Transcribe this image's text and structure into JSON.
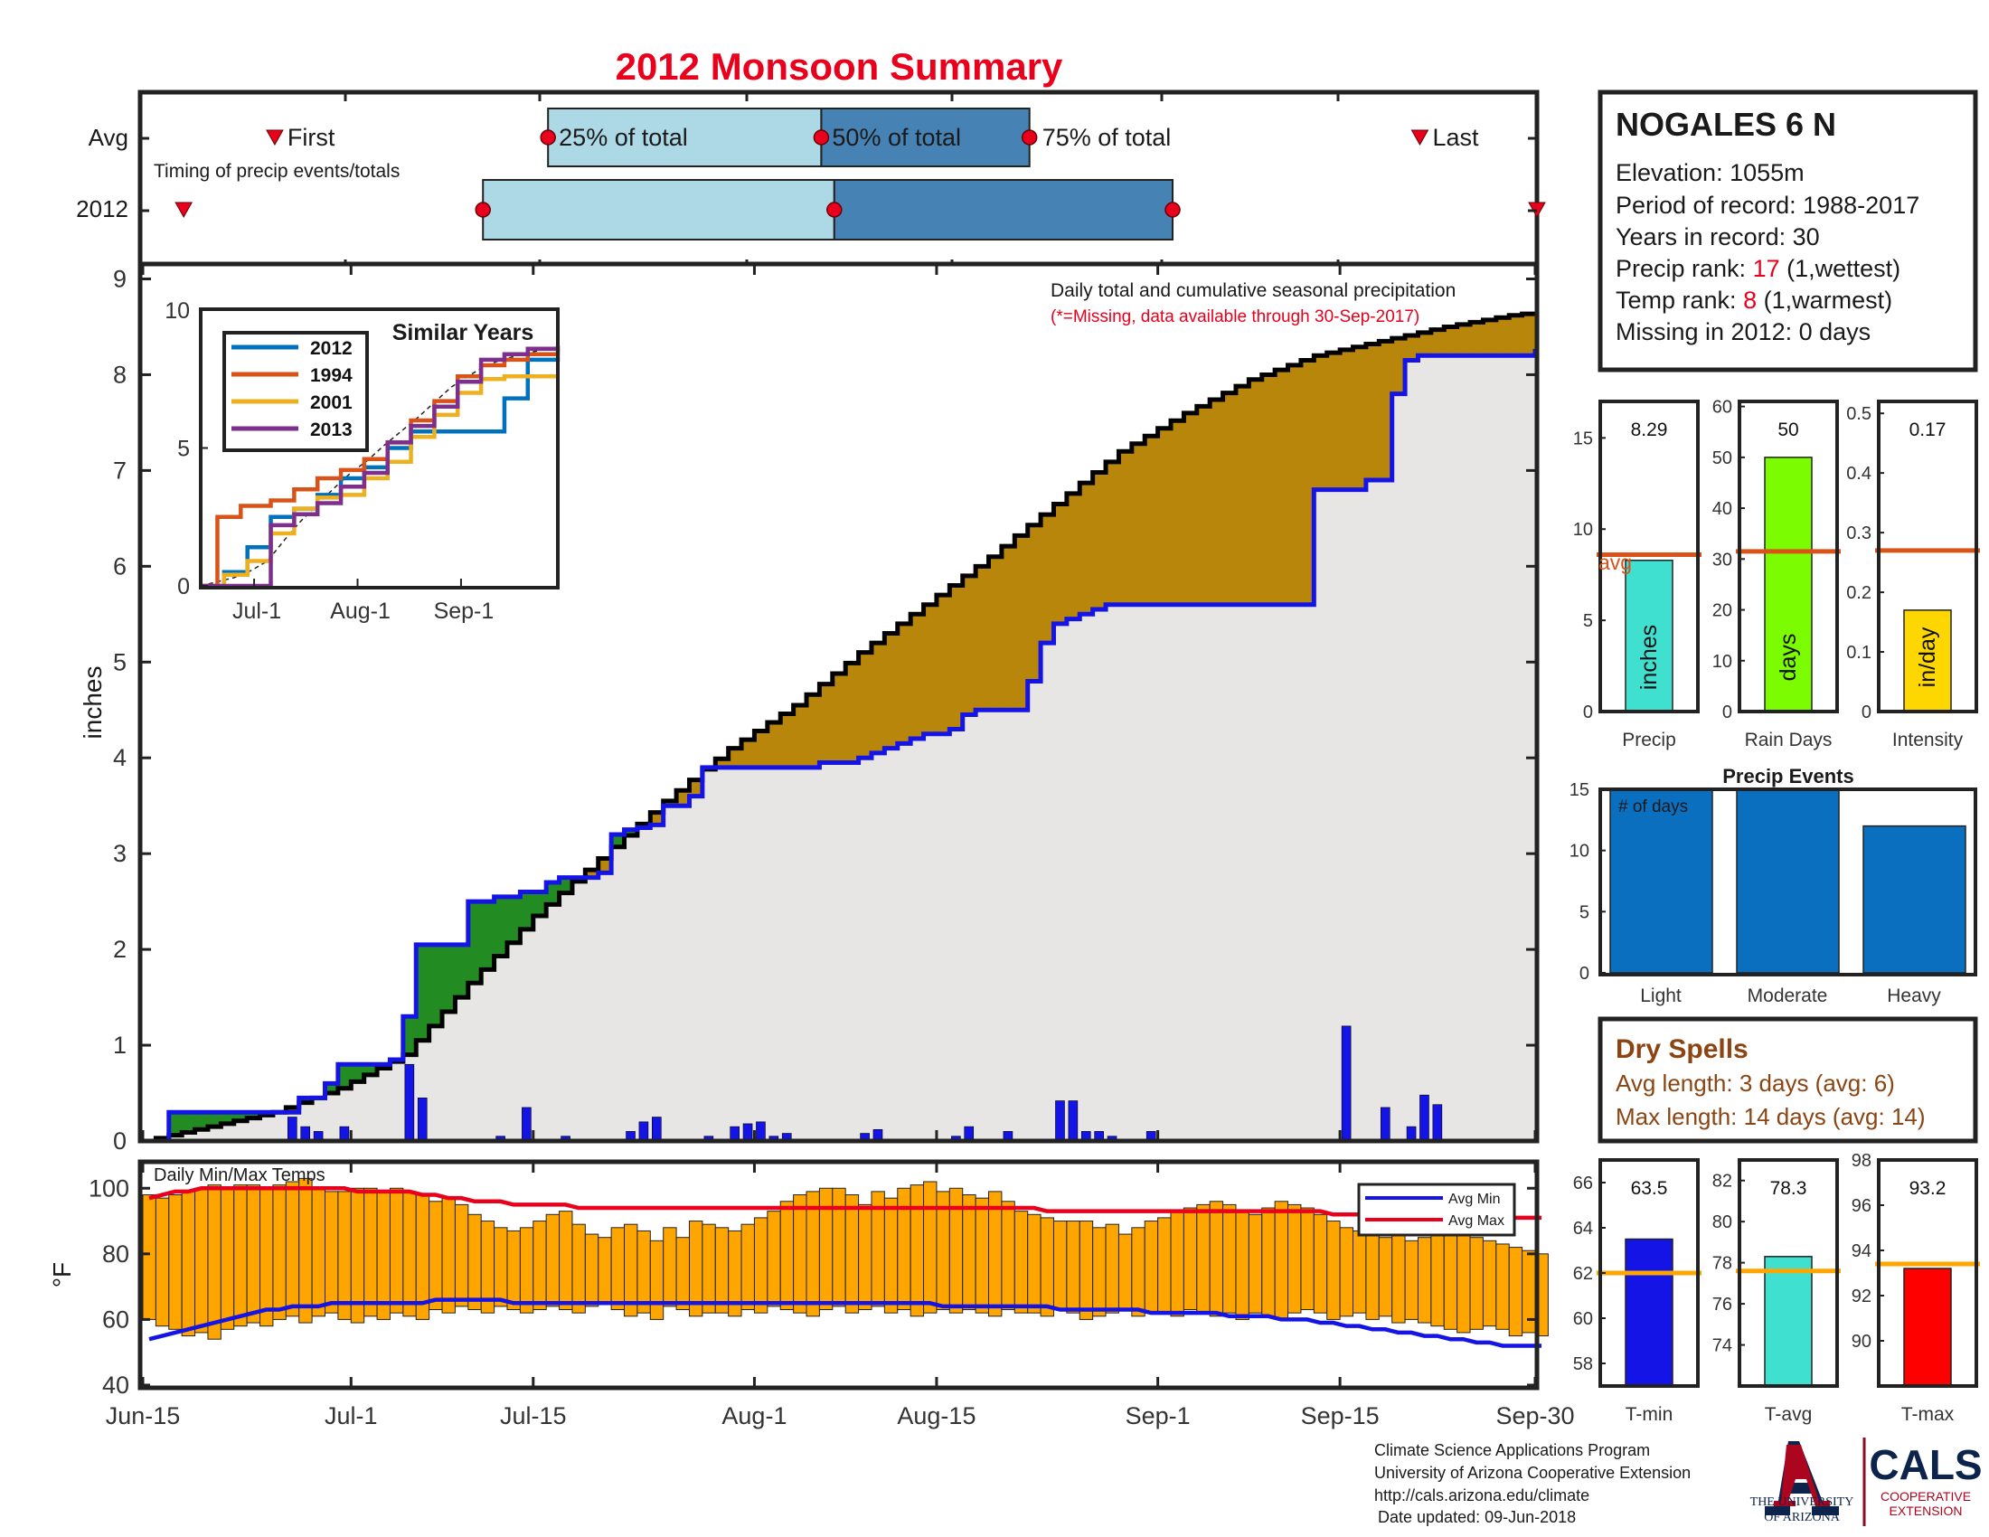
{
  "title": "2012 Monsoon Summary",
  "timing": {
    "rows": [
      "Avg",
      "2012"
    ],
    "note": "Timing of precip events/totals",
    "first_label": "First",
    "last_label": "Last",
    "q25_label": "25% of total",
    "q50_label": "50% of total",
    "q75_label": "75% of total"
  },
  "station": {
    "name": "NOGALES 6 N",
    "elevation_label": "Elevation: 1055m",
    "period_label": "Period of record: 1988-2017",
    "years_label": "Years in record: 30",
    "precip_rank_prefix": "Precip rank: ",
    "precip_rank": "17",
    "precip_rank_suffix": " (1,wettest)",
    "temp_rank_prefix": "Temp rank: ",
    "temp_rank": "8",
    "temp_rank_suffix": " (1,warmest)",
    "missing_label": "Missing in 2012: 0 days"
  },
  "main_chart": {
    "annotation_line1": "Daily total and cumulative seasonal precipitation",
    "annotation_line2": "(*=Missing, data available through 30-Sep-2017)",
    "ylabel": "inches",
    "yticks": [
      "0",
      "1",
      "2",
      "3",
      "4",
      "5",
      "6",
      "7",
      "8",
      "9"
    ],
    "xticks": [
      "Jun-15",
      "Jul-1",
      "Jul-15",
      "Aug-1",
      "Aug-15",
      "Sep-1",
      "Sep-15",
      "Sep-30"
    ]
  },
  "inset": {
    "title": "Similar Years",
    "legend": [
      "2012",
      "1994",
      "2001",
      "2013"
    ],
    "yticks": [
      "0",
      "5",
      "10"
    ],
    "xticks": [
      "Jul-1",
      "Aug-1",
      "Sep-1"
    ]
  },
  "temps": {
    "title": "Daily Min/Max Temps",
    "ylabel": "°F",
    "yticks": [
      "40",
      "60",
      "80",
      "100"
    ],
    "legend_min": "Avg Min",
    "legend_max": "Avg Max"
  },
  "precip_panel": {
    "value": "8.29",
    "label": "Precip",
    "unit": "inches",
    "avg_label": "avg",
    "yticks": [
      "0",
      "5",
      "10",
      "15"
    ]
  },
  "raindays_panel": {
    "value": "50",
    "label": "Rain Days",
    "unit": "days",
    "yticks": [
      "0",
      "10",
      "20",
      "30",
      "40",
      "50",
      "60"
    ]
  },
  "intensity_panel": {
    "value": "0.17",
    "label": "Intensity",
    "unit": "in/day",
    "yticks": [
      "0",
      "0.1",
      "0.2",
      "0.3",
      "0.4",
      "0.5"
    ]
  },
  "events_panel": {
    "title": "Precip Events",
    "note": "# of days",
    "yticks": [
      "0",
      "5",
      "10",
      "15"
    ],
    "categories": [
      "Light",
      "Moderate",
      "Heavy"
    ]
  },
  "dry_spells": {
    "title": "Dry Spells",
    "avg_line": "Avg length: 3 days (avg: 6)",
    "max_line": "Max length: 14 days (avg: 14)"
  },
  "tmin_panel": {
    "value": "63.5",
    "label": "T-min",
    "yticks": [
      "58",
      "60",
      "62",
      "64",
      "66"
    ]
  },
  "tavg_panel": {
    "value": "78.3",
    "label": "T-avg",
    "yticks": [
      "74",
      "76",
      "78",
      "80",
      "82"
    ]
  },
  "tmax_panel": {
    "value": "93.2",
    "label": "T-max",
    "yticks": [
      "90",
      "92",
      "94",
      "96",
      "98"
    ]
  },
  "footer": {
    "line1": "Climate Science Applications Program",
    "line2": "University of Arizona Cooperative Extension",
    "line3": "http://cals.arizona.edu/climate",
    "line4": "Date updated: 09-Jun-2018"
  },
  "logos": {
    "ua_line1": "THE UNIVERSITY",
    "ua_line2": "OF ARIZONA",
    "cals": "CALS",
    "cals_line1": "COOPERATIVE",
    "cals_line2": "EXTENSION"
  },
  "colors": {
    "accent_red": "#e8001c",
    "obs_blue": "#1414e6",
    "above_green": "#228b22",
    "below_gold": "#b8860b",
    "light_blue": "#add8e6",
    "steel_blue": "#4682b4",
    "bar_blue": "#0b6fc0",
    "orange": "#ffa500",
    "dry_brown": "#8b4513"
  },
  "chart_data": [
    {
      "type": "bar",
      "name": "timing",
      "categories": [
        "Avg",
        "2012"
      ],
      "x_unit": "day of season (0 = Jun-15, 107 = Sep-30)",
      "avg": {
        "first": 10,
        "q25": 31,
        "q50": 52,
        "q75": 68,
        "last": 98
      },
      "y2012": {
        "first": 3,
        "q25": 26,
        "q50": 53,
        "q75": 79,
        "last": 107
      }
    },
    {
      "type": "line",
      "name": "cumulative seasonal precipitation",
      "xlabel": "",
      "ylabel": "inches",
      "ylim": [
        0,
        9
      ],
      "xlim": [
        0,
        107
      ],
      "series": [
        {
          "name": "2012 cumulative",
          "x": [
            0,
            2,
            3,
            11,
            12,
            14,
            15,
            19,
            20,
            21,
            23,
            24,
            25,
            26,
            27,
            28,
            29,
            30,
            31,
            32,
            34,
            35,
            36,
            37,
            38,
            39,
            40,
            42,
            43,
            44,
            45,
            46,
            51,
            52,
            55,
            56,
            57,
            58,
            59,
            60,
            62,
            63,
            64,
            67,
            68,
            69,
            70,
            71,
            72,
            73,
            74,
            78,
            79,
            80,
            81,
            82,
            83,
            84,
            85,
            86,
            87,
            88,
            89,
            90,
            91,
            92,
            93,
            94,
            96,
            97,
            98,
            99,
            100,
            101,
            102,
            103,
            104,
            105,
            106,
            107
          ],
          "y": [
            0,
            0.3,
            0.3,
            0.3,
            0.45,
            0.6,
            0.8,
            0.85,
            1.3,
            2.05,
            2.05,
            2.05,
            2.5,
            2.5,
            2.55,
            2.55,
            2.6,
            2.6,
            2.7,
            2.75,
            2.75,
            2.8,
            3.2,
            3.25,
            3.27,
            3.3,
            3.5,
            3.6,
            3.9,
            3.9,
            3.9,
            3.9,
            3.9,
            3.95,
            4.0,
            4.05,
            4.1,
            4.15,
            4.2,
            4.25,
            4.3,
            4.45,
            4.5,
            4.5,
            4.8,
            5.2,
            5.4,
            5.45,
            5.5,
            5.55,
            5.6,
            5.6,
            5.6,
            5.6,
            5.6,
            5.6,
            5.6,
            5.6,
            5.6,
            5.6,
            5.6,
            5.6,
            5.6,
            6.8,
            6.8,
            6.8,
            6.8,
            6.9,
            7.8,
            8.15,
            8.2,
            8.2,
            8.2,
            8.2,
            8.2,
            8.2,
            8.2,
            8.2,
            8.2,
            8.27
          ]
        },
        {
          "name": "average cumulative",
          "x": [
            0,
            5,
            10,
            15,
            20,
            25,
            30,
            35,
            40,
            45,
            50,
            55,
            60,
            65,
            70,
            75,
            80,
            85,
            90,
            95,
            100,
            105,
            107
          ],
          "y": [
            0,
            0.15,
            0.3,
            0.55,
            0.9,
            1.65,
            2.35,
            2.95,
            3.55,
            4.1,
            4.55,
            5.1,
            5.6,
            6.1,
            6.65,
            7.2,
            7.6,
            7.95,
            8.2,
            8.35,
            8.5,
            8.62,
            8.65
          ]
        }
      ]
    },
    {
      "type": "bar",
      "name": "daily precipitation",
      "ylabel": "inches",
      "x": [
        11,
        12,
        13,
        15,
        20,
        21,
        27,
        29,
        32,
        37,
        38,
        39,
        43,
        45,
        46,
        47,
        48,
        49,
        55,
        56,
        62,
        63,
        66,
        70,
        71,
        72,
        73,
        74,
        77,
        92,
        95,
        97,
        98,
        99
      ],
      "values": [
        0.25,
        0.15,
        0.1,
        0.15,
        0.8,
        0.45,
        0.05,
        0.35,
        0.05,
        0.1,
        0.2,
        0.25,
        0.05,
        0.15,
        0.18,
        0.2,
        0.05,
        0.08,
        0.08,
        0.12,
        0.05,
        0.15,
        0.1,
        0.42,
        0.42,
        0.1,
        0.1,
        0.05,
        0.1,
        1.2,
        0.35,
        0.15,
        0.48,
        0.38
      ]
    },
    {
      "type": "line",
      "name": "similar years inset",
      "title": "Similar Years",
      "ylim": [
        0,
        10
      ],
      "series": [
        {
          "name": "2012",
          "x": [
            0,
            7,
            14,
            21,
            28,
            35,
            42,
            49,
            56,
            63,
            70,
            77,
            84,
            91,
            98,
            107
          ],
          "y": [
            0,
            0.5,
            1.4,
            2.5,
            2.8,
            3.3,
            3.9,
            4.3,
            5.0,
            5.6,
            5.6,
            5.6,
            5.6,
            6.8,
            8.2,
            8.3
          ]
        },
        {
          "name": "1994",
          "x": [
            0,
            5,
            12,
            21,
            28,
            35,
            42,
            49,
            56,
            63,
            70,
            77,
            84,
            91,
            98,
            107
          ],
          "y": [
            0,
            2.5,
            2.9,
            3.1,
            3.5,
            3.9,
            4.2,
            4.6,
            5.2,
            6.0,
            6.7,
            7.6,
            8.0,
            8.2,
            8.4,
            8.6
          ]
        },
        {
          "name": "2001",
          "x": [
            0,
            7,
            14,
            21,
            28,
            35,
            42,
            49,
            56,
            63,
            70,
            77,
            84,
            91,
            98,
            107
          ],
          "y": [
            0,
            0.4,
            0.9,
            1.9,
            2.8,
            3.2,
            3.3,
            3.9,
            4.5,
            5.4,
            6.2,
            7.0,
            7.5,
            7.6,
            7.6,
            7.6
          ]
        },
        {
          "name": "2013",
          "x": [
            0,
            7,
            14,
            21,
            28,
            35,
            42,
            49,
            56,
            63,
            70,
            77,
            84,
            91,
            98,
            107
          ],
          "y": [
            0,
            0,
            0,
            2.2,
            2.6,
            3.0,
            3.6,
            4.1,
            5.2,
            5.8,
            6.5,
            7.4,
            8.2,
            8.4,
            8.6,
            8.7
          ]
        }
      ]
    },
    {
      "type": "bar",
      "name": "daily min/max temperatures",
      "title": "Daily Min/Max Temps",
      "ylabel": "°F",
      "ylim": [
        40,
        105
      ],
      "tmax": [
        98,
        97,
        98,
        99,
        100,
        101,
        100,
        101,
        101,
        100,
        101,
        102,
        103,
        100,
        99,
        99,
        100,
        100,
        99,
        100,
        99,
        98,
        96,
        97,
        95,
        92,
        90,
        88,
        87,
        88,
        90,
        92,
        93,
        89,
        86,
        85,
        88,
        89,
        87,
        84,
        88,
        85,
        90,
        89,
        88,
        87,
        89,
        91,
        93,
        96,
        98,
        99,
        100,
        100,
        98,
        95,
        99,
        97,
        100,
        101,
        102,
        99,
        100,
        98,
        97,
        99,
        96,
        93,
        92,
        91,
        90,
        90,
        90,
        88,
        89,
        86,
        88,
        90,
        91,
        93,
        94,
        95,
        96,
        95,
        93,
        92,
        94,
        96,
        95,
        94,
        92,
        90,
        88,
        87,
        86,
        85,
        86,
        84,
        85,
        86,
        87,
        86,
        85,
        84,
        83,
        82,
        81,
        80
      ],
      "tmin": [
        60,
        58,
        57,
        55,
        56,
        54,
        57,
        58,
        59,
        58,
        60,
        61,
        59,
        61,
        62,
        60,
        59,
        61,
        60,
        62,
        61,
        60,
        63,
        62,
        64,
        63,
        62,
        64,
        63,
        62,
        63,
        64,
        63,
        62,
        64,
        65,
        63,
        61,
        62,
        60,
        64,
        63,
        61,
        62,
        62,
        61,
        63,
        62,
        64,
        63,
        62,
        61,
        63,
        64,
        62,
        63,
        64,
        62,
        63,
        61,
        62,
        63,
        62,
        63,
        62,
        61,
        63,
        62,
        62,
        61,
        63,
        62,
        60,
        61,
        62,
        63,
        61,
        62,
        62,
        61,
        63,
        62,
        61,
        62,
        60,
        62,
        61,
        60,
        62,
        63,
        62,
        60,
        61,
        62,
        60,
        61,
        59,
        60,
        59,
        58,
        57,
        56,
        57,
        58,
        57,
        55,
        56,
        55
      ],
      "avg_min": [
        54,
        55,
        56,
        57,
        58,
        59,
        60,
        61,
        62,
        63,
        63,
        64,
        64,
        64,
        65,
        65,
        65,
        65,
        65,
        65,
        65,
        65,
        66,
        66,
        66,
        66,
        66,
        66,
        65,
        65,
        65,
        65,
        65,
        65,
        65,
        65,
        65,
        65,
        65,
        65,
        65,
        65,
        65,
        65,
        65,
        65,
        65,
        65,
        65,
        65,
        65,
        65,
        65,
        65,
        65,
        65,
        65,
        65,
        65,
        65,
        65,
        64,
        64,
        64,
        64,
        64,
        64,
        64,
        64,
        64,
        63,
        63,
        63,
        63,
        63,
        63,
        63,
        62,
        62,
        62,
        62,
        62,
        62,
        61,
        61,
        61,
        61,
        60,
        60,
        60,
        59,
        59,
        58,
        58,
        57,
        57,
        56,
        56,
        55,
        55,
        54,
        54,
        53,
        53,
        52,
        52,
        52,
        52
      ],
      "avg_max": [
        97,
        98,
        99,
        99,
        100,
        100,
        100,
        100,
        100,
        100,
        100,
        100,
        100,
        100,
        100,
        100,
        99,
        99,
        99,
        99,
        99,
        98,
        98,
        97,
        97,
        96,
        96,
        96,
        95,
        95,
        95,
        95,
        95,
        94,
        94,
        94,
        94,
        94,
        94,
        94,
        94,
        94,
        94,
        94,
        94,
        94,
        94,
        94,
        94,
        94,
        94,
        94,
        94,
        94,
        94,
        94,
        94,
        94,
        94,
        94,
        94,
        94,
        94,
        94,
        94,
        94,
        94,
        94,
        94,
        93,
        93,
        93,
        93,
        93,
        93,
        93,
        93,
        93,
        93,
        93,
        93,
        93,
        93,
        93,
        93,
        93,
        93,
        93,
        93,
        93,
        93,
        92,
        92,
        92,
        92,
        92,
        92,
        92,
        91,
        91,
        91,
        91,
        91,
        91,
        91,
        91,
        91,
        91
      ]
    },
    {
      "type": "bar",
      "name": "Precip",
      "ylim": [
        0,
        17
      ],
      "values": [
        8.29
      ],
      "avg": 8.6
    },
    {
      "type": "bar",
      "name": "Rain Days",
      "ylim": [
        0,
        61
      ],
      "values": [
        50
      ],
      "avg": 31.5
    },
    {
      "type": "bar",
      "name": "Intensity",
      "ylim": [
        0,
        0.52
      ],
      "values": [
        0.17
      ],
      "avg": 0.27
    },
    {
      "type": "bar",
      "name": "Precip Events",
      "ylim": [
        0,
        15
      ],
      "categories": [
        "Light",
        "Moderate",
        "Heavy"
      ],
      "values": [
        15,
        15,
        12
      ]
    },
    {
      "type": "bar",
      "name": "T-min",
      "ylim": [
        57,
        67
      ],
      "values": [
        63.5
      ],
      "avg": 62
    },
    {
      "type": "bar",
      "name": "T-avg",
      "ylim": [
        72,
        83
      ],
      "values": [
        78.3
      ],
      "avg": 77.6
    },
    {
      "type": "bar",
      "name": "T-max",
      "ylim": [
        88,
        98
      ],
      "values": [
        93.2
      ],
      "avg": 93.4
    }
  ]
}
